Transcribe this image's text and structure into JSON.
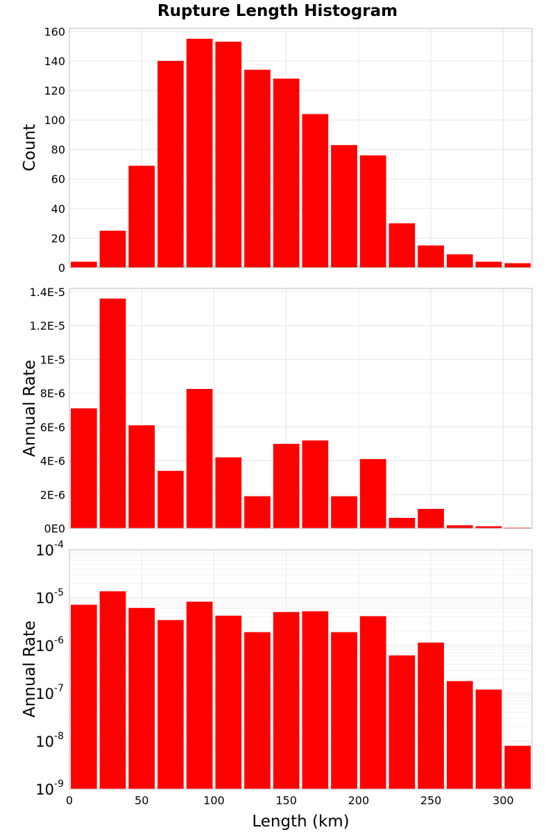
{
  "title": "Rupture Length Histogram",
  "colors": {
    "bar": "#ff0000",
    "grid": "#e6e6e6",
    "frame": "#bdbdbd"
  },
  "chart_data": [
    {
      "type": "bar",
      "bin_width_km": 20,
      "x": [
        10,
        30,
        50,
        70,
        90,
        110,
        130,
        150,
        170,
        190,
        210,
        230,
        250,
        270,
        290,
        310
      ],
      "values": [
        4,
        25,
        69,
        140,
        155,
        153,
        134,
        128,
        104,
        83,
        76,
        30,
        15,
        9,
        4,
        3
      ],
      "ylabel": "Count",
      "ylim": [
        0,
        162
      ],
      "yticks": [
        0,
        20,
        40,
        60,
        80,
        100,
        120,
        140,
        160
      ],
      "yticklabels": [
        "0",
        "20",
        "40",
        "60",
        "80",
        "100",
        "120",
        "140",
        "160"
      ],
      "grid": true
    },
    {
      "type": "bar",
      "bin_width_km": 20,
      "x": [
        10,
        30,
        50,
        70,
        90,
        110,
        130,
        150,
        170,
        190,
        210,
        230,
        250,
        270,
        290,
        310
      ],
      "values": [
        7.1e-06,
        1.36e-05,
        6.1e-06,
        3.4e-06,
        8.25e-06,
        4.2e-06,
        1.9e-06,
        5e-06,
        5.2e-06,
        1.9e-06,
        4.1e-06,
        6.2e-07,
        1.15e-06,
        1.8e-07,
        1.2e-07,
        8e-09
      ],
      "ylabel": "Annual Rate",
      "ylim": [
        0,
        1.42e-05
      ],
      "yticks": [
        0,
        2e-06,
        4e-06,
        6e-06,
        8e-06,
        1e-05,
        1.2e-05,
        1.4e-05
      ],
      "yticklabels": [
        "0E0",
        "2E-6",
        "4E-6",
        "6E-6",
        "8E-6",
        "1E-5",
        "1.2E-5",
        "1.4E-5"
      ],
      "grid": true
    },
    {
      "type": "bar",
      "yscale": "log",
      "bin_width_km": 20,
      "x": [
        10,
        30,
        50,
        70,
        90,
        110,
        130,
        150,
        170,
        190,
        210,
        230,
        250,
        270,
        290,
        310
      ],
      "values": [
        7.1e-06,
        1.36e-05,
        6.1e-06,
        3.4e-06,
        8.25e-06,
        4.2e-06,
        1.9e-06,
        5e-06,
        5.2e-06,
        1.9e-06,
        4.1e-06,
        6.2e-07,
        1.15e-06,
        1.8e-07,
        1.2e-07,
        8e-09
      ],
      "ylabel": "Annual Rate",
      "ylim": [
        1e-09,
        0.0001
      ],
      "yticks": [
        {
          "base": "10",
          "exp": "-9",
          "value": 1e-09
        },
        {
          "base": "10",
          "exp": "-8",
          "value": 1e-08
        },
        {
          "base": "10",
          "exp": "-7",
          "value": 1e-07
        },
        {
          "base": "10",
          "exp": "-6",
          "value": 1e-06
        },
        {
          "base": "10",
          "exp": "-5",
          "value": 1e-05
        },
        {
          "base": "10",
          "exp": "-4",
          "value": 0.0001
        }
      ],
      "xlabel": "Length (km)",
      "xlim": [
        0,
        320
      ],
      "xticks": [
        0,
        50,
        100,
        150,
        200,
        250,
        300
      ],
      "xticklabels": [
        "0",
        "50",
        "100",
        "150",
        "200",
        "250",
        "300"
      ],
      "grid": true
    }
  ]
}
